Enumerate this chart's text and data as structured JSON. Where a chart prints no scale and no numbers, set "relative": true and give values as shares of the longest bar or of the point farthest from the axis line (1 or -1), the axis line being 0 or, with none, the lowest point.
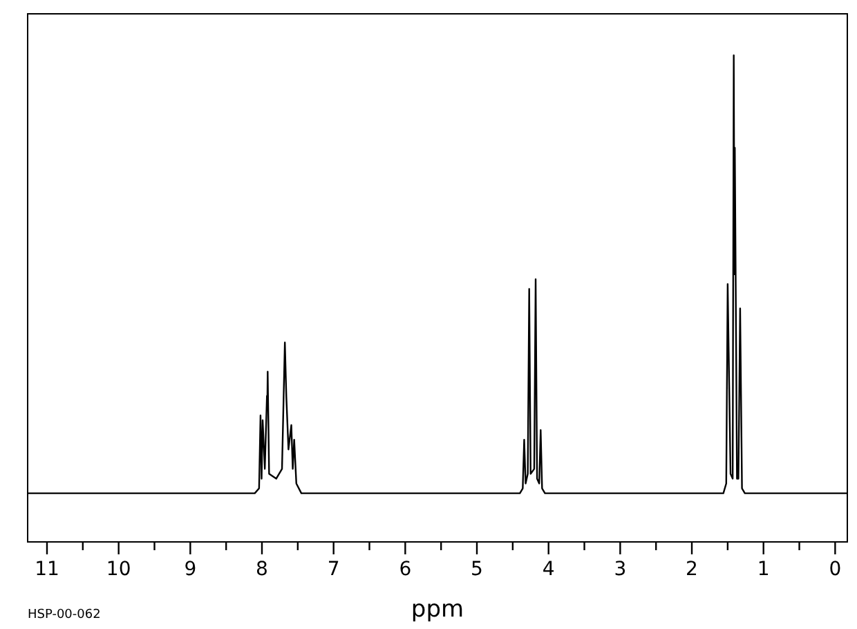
{
  "chart_data": {
    "type": "line",
    "relative": true,
    "xlabel": "ppm",
    "annotations": [
      "HSP-00-062"
    ],
    "xlim": [
      11.27,
      -0.17
    ],
    "xticks": [
      11,
      {
        "value": 10.5,
        "label": null
      },
      10,
      {
        "value": 9.5,
        "label": null
      },
      9,
      {
        "value": 8.5,
        "label": null
      },
      8,
      {
        "value": 7.5,
        "label": null
      },
      7,
      {
        "value": 6.5,
        "label": null
      },
      6,
      {
        "value": 5.5,
        "label": null
      },
      5,
      {
        "value": 4.5,
        "label": null
      },
      4,
      {
        "value": 3.5,
        "label": null
      },
      3,
      {
        "value": 2.5,
        "label": null
      },
      2,
      {
        "value": 1.5,
        "label": null
      },
      1,
      {
        "value": 0.5,
        "label": null
      },
      0
    ],
    "grid": false,
    "marker": "none",
    "line_style": "solid",
    "series": [
      {
        "color": "#000000",
        "x": [
          11.27,
          8.1,
          8.04,
          8.02,
          8.005,
          7.99,
          7.96,
          7.93,
          7.925,
          7.92,
          7.9,
          7.8,
          7.72,
          7.68,
          7.66,
          7.63,
          7.59,
          7.57,
          7.55,
          7.52,
          7.45,
          4.4,
          4.36,
          4.34,
          4.32,
          4.29,
          4.27,
          4.25,
          4.2,
          4.18,
          4.16,
          4.13,
          4.11,
          4.09,
          4.05,
          1.56,
          1.52,
          1.5,
          1.46,
          1.43,
          1.415,
          1.405,
          1.4,
          1.37,
          1.35,
          1.326,
          1.3,
          1.26,
          -0.17
        ],
        "values": [
          0.1,
          0.1,
          0.11,
          0.26,
          0.13,
          0.25,
          0.15,
          0.3,
          0.28,
          0.35,
          0.14,
          0.13,
          0.15,
          0.41,
          0.3,
          0.19,
          0.24,
          0.15,
          0.21,
          0.12,
          0.1,
          0.1,
          0.11,
          0.21,
          0.12,
          0.14,
          0.52,
          0.14,
          0.15,
          0.54,
          0.13,
          0.12,
          0.23,
          0.11,
          0.1,
          0.1,
          0.12,
          0.53,
          0.14,
          0.13,
          1.0,
          0.55,
          0.81,
          0.13,
          0.13,
          0.48,
          0.11,
          0.1,
          0.1
        ]
      }
    ]
  }
}
